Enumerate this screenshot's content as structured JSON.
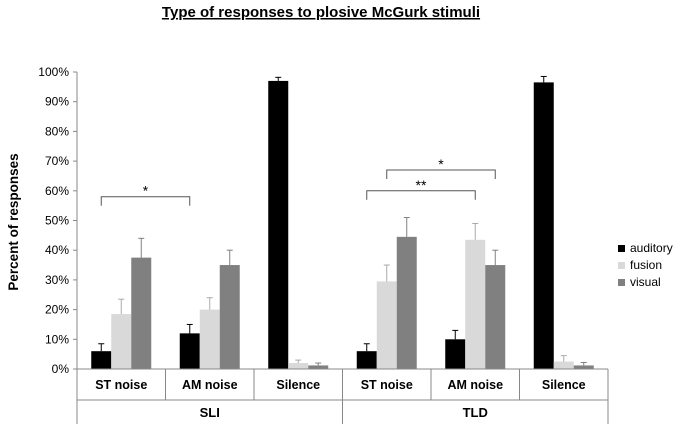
{
  "chart_data": {
    "type": "bar",
    "title": "Type of responses to plosive McGurk stimuli",
    "ylabel": "Percent of responses",
    "xlabel": "",
    "ylim": [
      0,
      100
    ],
    "yticks": [
      "0%",
      "10%",
      "20%",
      "30%",
      "40%",
      "50%",
      "60%",
      "70%",
      "80%",
      "90%",
      "100%"
    ],
    "groups": [
      {
        "name": "SLI",
        "categories": [
          "ST  noise",
          "AM noise",
          "Silence"
        ]
      },
      {
        "name": "TLD",
        "categories": [
          "ST  noise",
          "AM noise",
          "Silence"
        ]
      }
    ],
    "categories": [
      "ST  noise",
      "AM noise",
      "Silence",
      "ST  noise",
      "AM noise",
      "Silence"
    ],
    "series": [
      {
        "name": "auditory",
        "color": "#000000",
        "values": [
          6,
          12,
          97,
          6,
          10,
          96.5
        ],
        "errors": [
          2.5,
          3,
          1.2,
          2.5,
          3,
          2
        ]
      },
      {
        "name": "fusion",
        "color": "#d9d9d9",
        "values": [
          18.5,
          20,
          2,
          29.5,
          43.5,
          2.5
        ],
        "errors": [
          5,
          4,
          1,
          5.5,
          5.5,
          2
        ]
      },
      {
        "name": "visual",
        "color": "#808080",
        "values": [
          37.5,
          35,
          1.2,
          44.5,
          35,
          1.2
        ],
        "errors": [
          6.5,
          5,
          0.8,
          6.5,
          5,
          1
        ]
      }
    ],
    "annotations": [
      {
        "text": "*",
        "from_category": 0,
        "from_series": 0,
        "to_category": 1,
        "to_series": 0,
        "level": 58
      },
      {
        "text": "**",
        "from_category": 3,
        "from_series": 0,
        "to_category": 4,
        "to_series": 1,
        "level": 60
      },
      {
        "text": "*",
        "from_category": 3,
        "from_series": 1,
        "to_category": 4,
        "to_series": 2,
        "level": 67
      }
    ],
    "legend_position": "right",
    "grid": false
  }
}
